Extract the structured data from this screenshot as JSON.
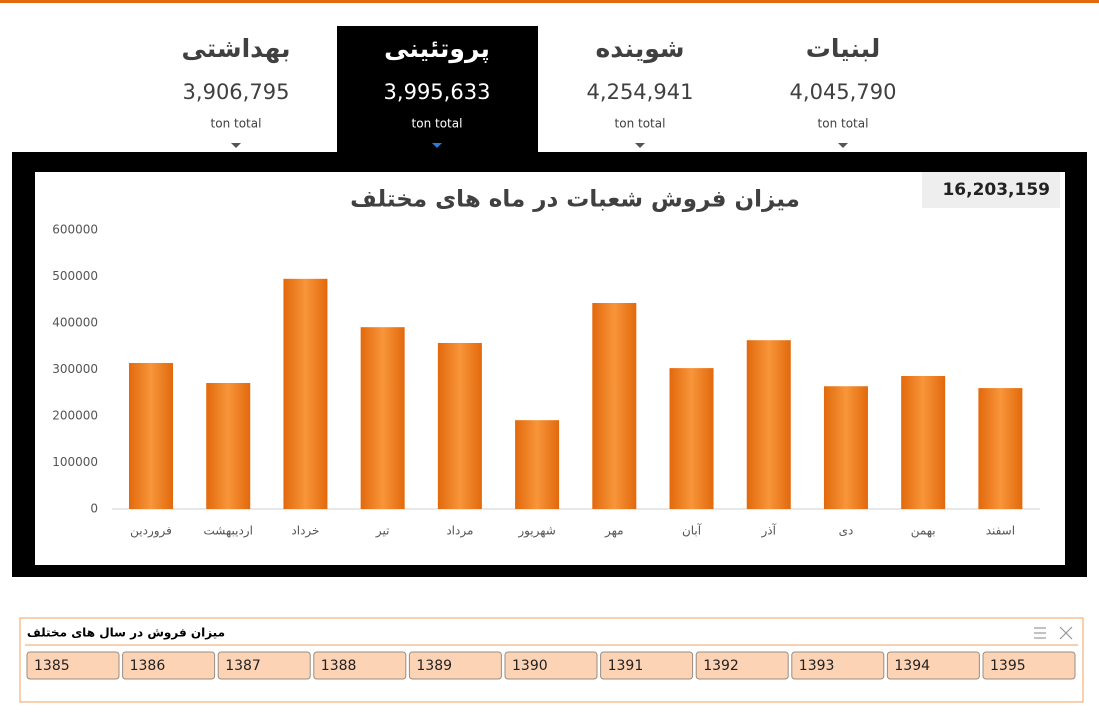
{
  "tabs": [
    {
      "name": "لبنیات",
      "value": "4,045,790",
      "unit": "ton total"
    },
    {
      "name": "شوینده",
      "value": "4,254,941",
      "unit": "ton total"
    },
    {
      "name": "پروتئینی",
      "value": "3,995,633",
      "unit": "ton total",
      "selected": true
    },
    {
      "name": "بهداشتی",
      "value": "3,906,795",
      "unit": "ton total"
    }
  ],
  "total": "16,203,159",
  "chart_data": {
    "type": "bar",
    "title": "میزان فروش شعبات در ماه های مختلف",
    "categories": [
      "فروردین",
      "اردیبهشت",
      "خرداد",
      "تیر",
      "مرداد",
      "شهریور",
      "مهر",
      "آبان",
      "آذر",
      "دی",
      "بهمن",
      "اسفند"
    ],
    "values": [
      314000,
      271000,
      495000,
      391000,
      357000,
      191000,
      443000,
      303000,
      363000,
      264000,
      286000,
      260000
    ],
    "color": "#e2690c",
    "ylim": [
      0,
      600000
    ],
    "yticks": [
      0,
      100000,
      200000,
      300000,
      400000,
      500000,
      600000
    ]
  },
  "slicer": {
    "title": "میزان فروش در سال های مختلف",
    "items": [
      "1385",
      "1386",
      "1387",
      "1388",
      "1389",
      "1390",
      "1391",
      "1392",
      "1393",
      "1394",
      "1395"
    ]
  }
}
